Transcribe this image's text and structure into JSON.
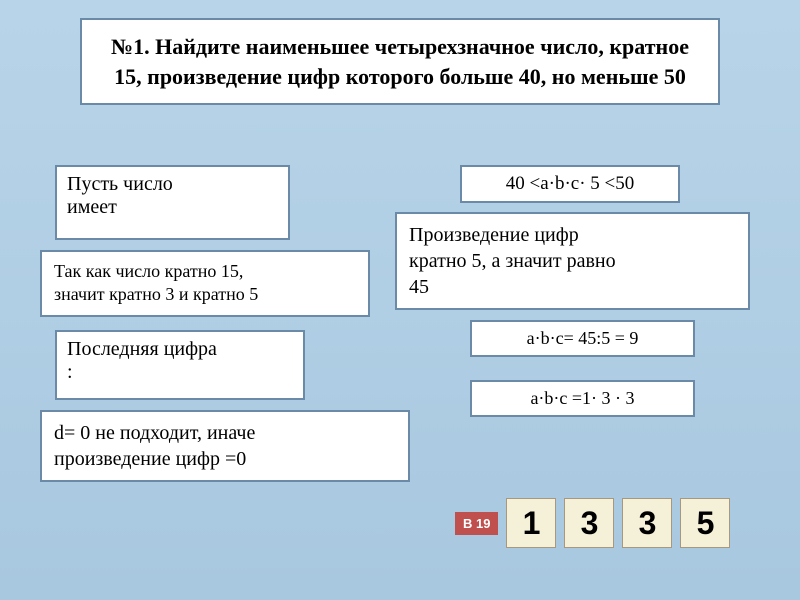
{
  "main": {
    "title": "№1. Найдите наименьшее четырехзначное число, кратное 15, произведение цифр которого больше 40, но меньше 50"
  },
  "let_box": {
    "line1": "Пусть число",
    "line2": "имеет"
  },
  "inequality": "40 <a·b·c· 5 <50",
  "product_box": {
    "line1": "Произведение цифр",
    "line2": "кратно 5, а значит равно",
    "line3": "45"
  },
  "mult15_box": {
    "line1": "Так как число кратно 15,",
    "line2": "значит кратно 3 и кратно 5"
  },
  "equation1": "a·b·c= 45:5 = 9",
  "lastdigit_box": {
    "line1": "Последняя цифра",
    "line2": ":"
  },
  "equation2": "a·b·c =1· 3 · 3",
  "d0_box": {
    "line1": "d= 0  не подходит, иначе",
    "line2": "произведение цифр =0"
  },
  "answer": {
    "label": "В 19",
    "digits": [
      "1",
      "3",
      "3",
      "5"
    ]
  },
  "colors": {
    "bg_top": "#b8d4e8",
    "bg_bottom": "#a8c8e0",
    "box_bg": "#ffffff",
    "box_border": "#6b8aa8",
    "badge_bg": "#c0504d",
    "digit_bg": "#f5f0d8",
    "digit_border": "#a89880"
  }
}
